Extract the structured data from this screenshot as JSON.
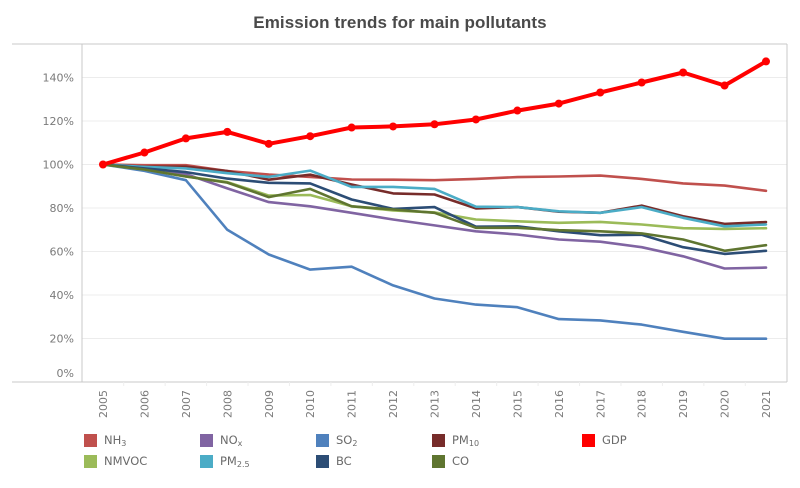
{
  "chart_data": {
    "type": "line",
    "title": "Emission trends for main pollutants",
    "xlabel": "",
    "ylabel": "",
    "x": [
      "2005",
      "2006",
      "2007",
      "2008",
      "2009",
      "2010",
      "2011",
      "2012",
      "2013",
      "2014",
      "2015",
      "2016",
      "2017",
      "2018",
      "2019",
      "2020",
      "2021"
    ],
    "ylim": [
      0,
      155
    ],
    "yticks": [
      0,
      20,
      40,
      60,
      80,
      100,
      120,
      140
    ],
    "ytick_labels": [
      "0%",
      "20%",
      "40%",
      "60%",
      "80%",
      "100%",
      "120%",
      "140%"
    ],
    "grid": true,
    "legend_position": "bottom",
    "series": [
      {
        "name": "NH3",
        "label_main": "NH",
        "label_sub": "3",
        "color": "#c0504d",
        "marker": false,
        "values": [
          100,
          99.7,
          99.7,
          97,
          95.4,
          94.3,
          93.1,
          93,
          92.8,
          93.4,
          94.2,
          94.5,
          94.9,
          93.4,
          91.3,
          90.3,
          87.9
        ]
      },
      {
        "name": "NOx",
        "label_main": "NO",
        "label_sub": "x",
        "color": "#8064a2",
        "marker": false,
        "values": [
          100,
          97.7,
          95.6,
          89,
          82.7,
          80.8,
          77.8,
          74.7,
          72,
          69.3,
          67.8,
          65.5,
          64.5,
          62,
          57.8,
          52.2,
          52.6
        ]
      },
      {
        "name": "SO2",
        "label_main": "SO",
        "label_sub": "2",
        "color": "#4f81bd",
        "marker": false,
        "values": [
          100,
          97.1,
          92.8,
          70,
          58.6,
          51.7,
          53,
          44.4,
          38.4,
          35.6,
          34.4,
          28.9,
          28.3,
          26.4,
          23.1,
          19.9,
          19.9
        ]
      },
      {
        "name": "PM10",
        "label_main": "PM",
        "label_sub": "10",
        "color": "#772c2a",
        "marker": false,
        "values": [
          100,
          99,
          99,
          97,
          93,
          95.3,
          90.8,
          86.7,
          86.2,
          79.8,
          80.4,
          78.3,
          77.8,
          81.1,
          76.2,
          72.7,
          73.5
        ]
      },
      {
        "name": "GDP",
        "label_main": "GDP",
        "label_sub": "",
        "color": "#ff0000",
        "marker": true,
        "values": [
          100,
          105.5,
          112,
          115,
          109.5,
          113,
          117,
          117.5,
          118.5,
          120.7,
          124.8,
          128,
          133.1,
          137.7,
          142.3,
          136.3,
          147.4
        ]
      },
      {
        "name": "NMVOC",
        "label_main": "NMVOC",
        "label_sub": "",
        "color": "#9bbb59",
        "marker": false,
        "values": [
          100,
          97.7,
          94.5,
          91.9,
          85.7,
          86,
          80.8,
          78.9,
          78,
          74.7,
          73.9,
          73.2,
          73.6,
          72.4,
          70.7,
          70.4,
          70.7
        ]
      },
      {
        "name": "PM2.5",
        "label_main": "PM",
        "label_sub": "2.5",
        "color": "#4bacc6",
        "marker": false,
        "values": [
          100,
          98.9,
          98.2,
          96,
          94.3,
          97.2,
          89.7,
          89.7,
          88.8,
          80.6,
          80.4,
          78.5,
          77.8,
          80.4,
          75.5,
          71.6,
          72.4
        ]
      },
      {
        "name": "BC",
        "label_main": "BC",
        "label_sub": "",
        "color": "#2c4d75",
        "marker": false,
        "values": [
          100,
          98.2,
          96.5,
          93.5,
          91.6,
          91.3,
          83.9,
          79.6,
          80.4,
          71.4,
          71.6,
          69.3,
          67.5,
          67.7,
          62,
          58.9,
          60.3
        ]
      },
      {
        "name": "CO",
        "label_main": "CO",
        "label_sub": "",
        "color": "#5f7530",
        "marker": false,
        "values": [
          100,
          97.7,
          94.5,
          91.7,
          85,
          88.8,
          80.8,
          79.3,
          77.8,
          70.9,
          70.9,
          69.8,
          69.3,
          68.3,
          65.5,
          60.3,
          62.9
        ]
      }
    ]
  }
}
